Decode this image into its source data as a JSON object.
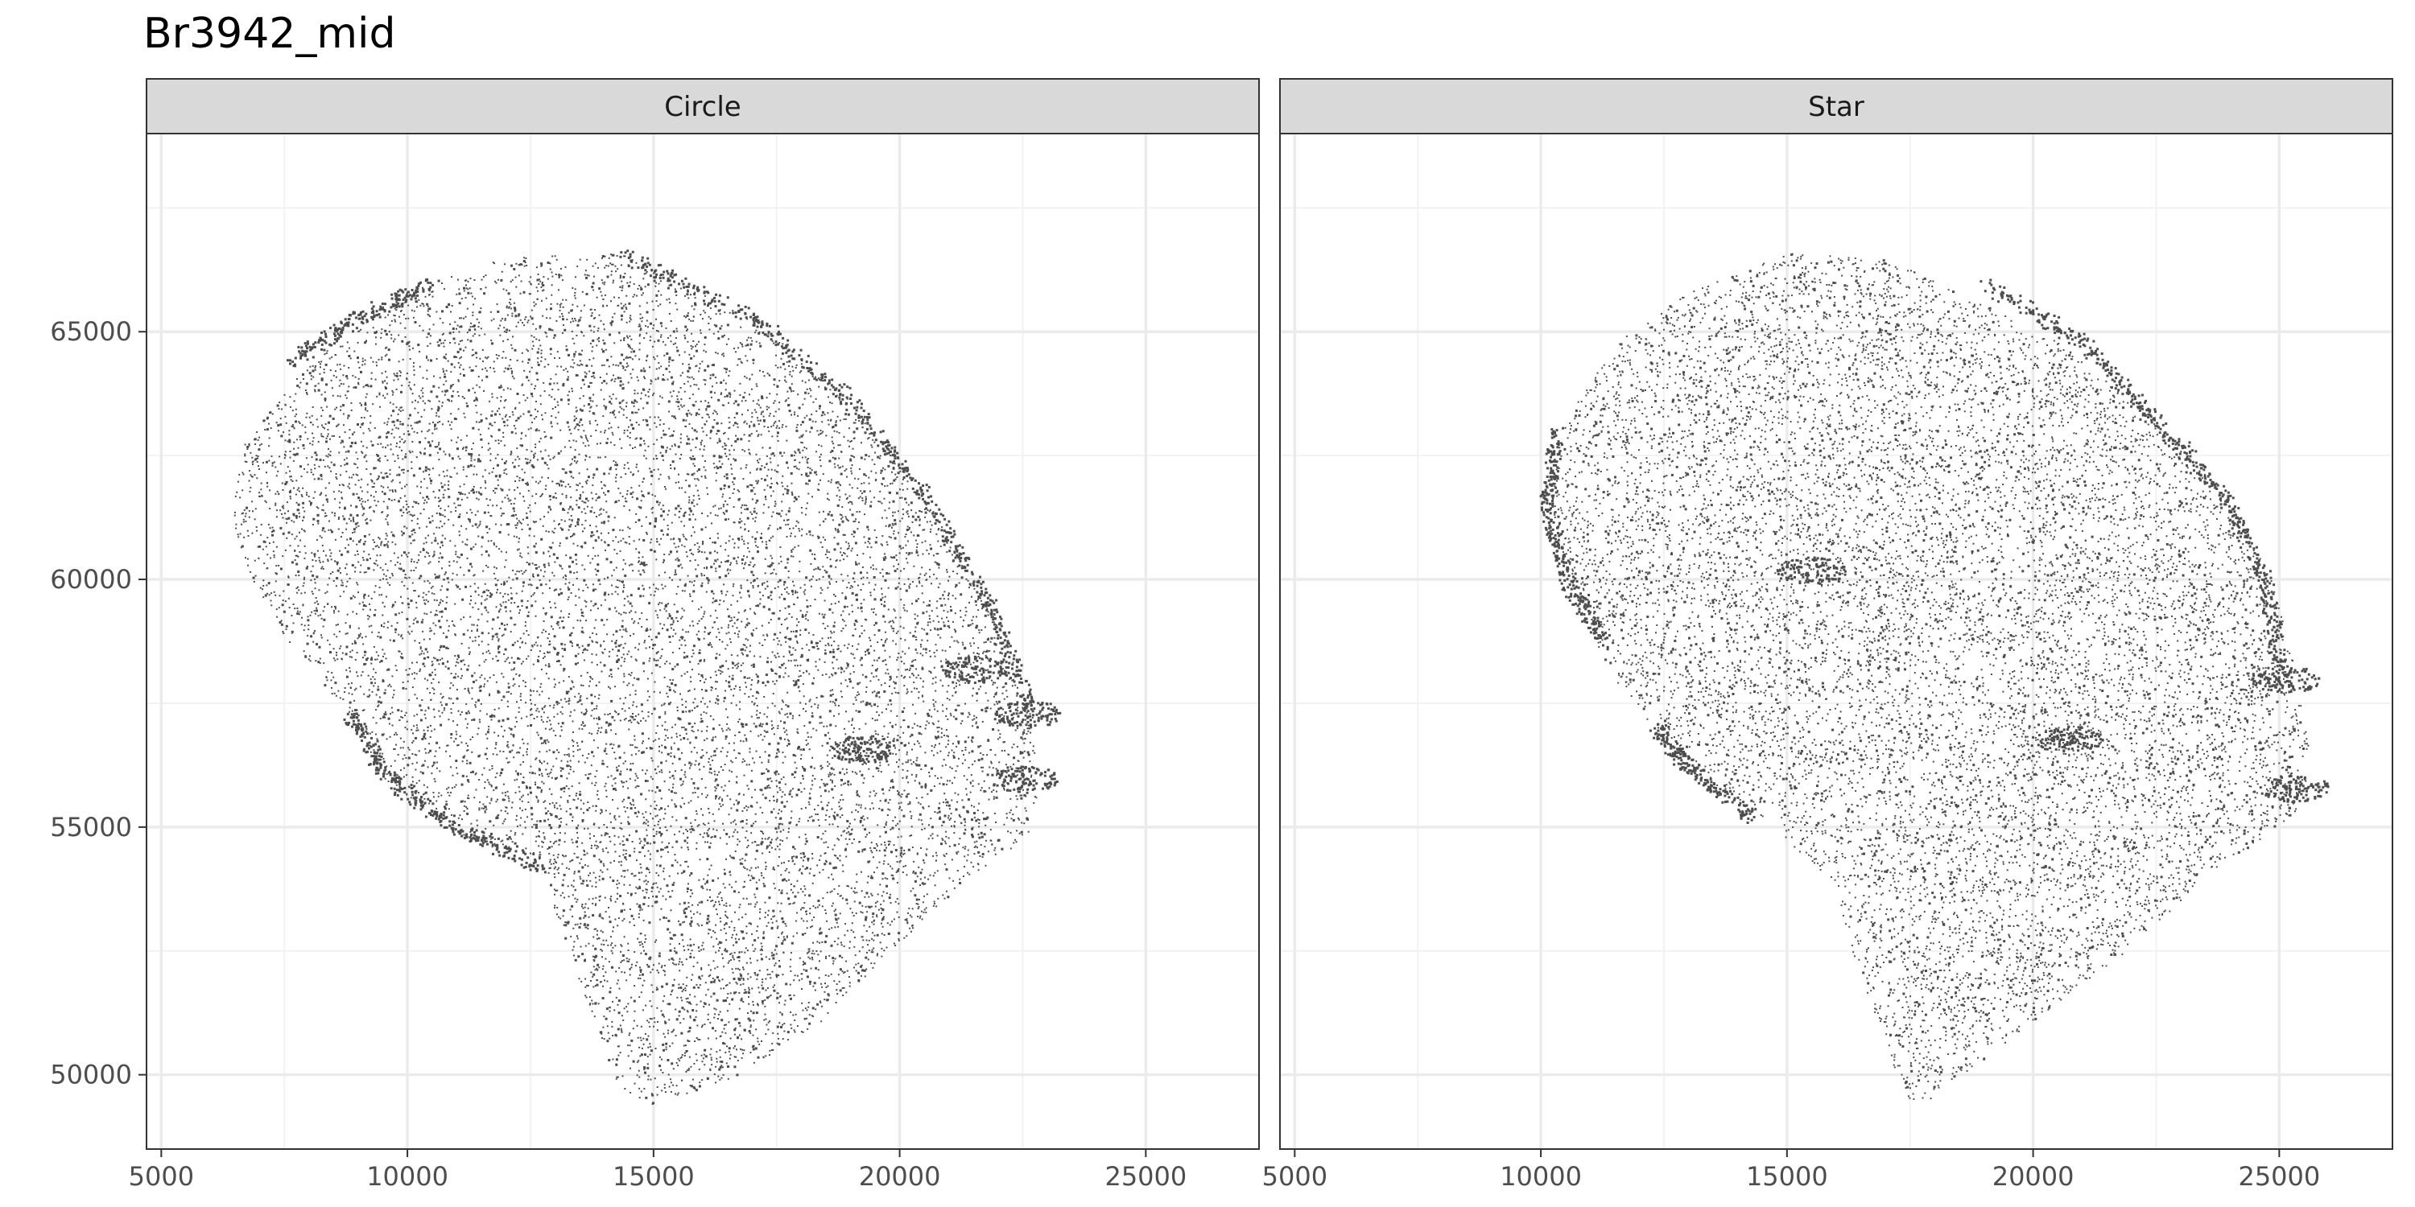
{
  "chart_data": {
    "type": "scatter",
    "title": "Br3942_mid",
    "xlabel": "",
    "ylabel": "",
    "xlim": [
      4700,
      27300
    ],
    "ylim": [
      48500,
      69000
    ],
    "x_ticks": [
      5000,
      10000,
      15000,
      20000,
      25000
    ],
    "y_ticks": [
      50000,
      55000,
      60000,
      65000
    ],
    "x_tick_labels": [
      "5000",
      "10000",
      "15000",
      "20000",
      "25000"
    ],
    "y_tick_labels": [
      "50000",
      "55000",
      "60000",
      "65000"
    ],
    "grid": true,
    "legend": "none",
    "point_color": "#4d4d4d",
    "panels": [
      {
        "name": "Circle",
        "outline": [
          [
            6700,
            62800
          ],
          [
            8000,
            64400
          ],
          [
            10000,
            65900
          ],
          [
            12000,
            66500
          ],
          [
            14300,
            66600
          ],
          [
            17000,
            65300
          ],
          [
            19000,
            63600
          ],
          [
            20500,
            61700
          ],
          [
            21800,
            59500
          ],
          [
            22700,
            57400
          ],
          [
            22800,
            55100
          ],
          [
            22300,
            54600
          ],
          [
            21300,
            53900
          ],
          [
            20000,
            52700
          ],
          [
            18400,
            51100
          ],
          [
            16700,
            50000
          ],
          [
            15000,
            49400
          ],
          [
            14300,
            49700
          ],
          [
            13500,
            51800
          ],
          [
            12700,
            54200
          ],
          [
            10800,
            55000
          ],
          [
            9500,
            56000
          ],
          [
            8800,
            57300
          ],
          [
            7600,
            58700
          ],
          [
            6700,
            60200
          ],
          [
            6400,
            61400
          ]
        ],
        "dense_edges": [
          [
            [
              14300,
              66600
            ],
            [
              17000,
              65300
            ],
            [
              19000,
              63600
            ],
            [
              20500,
              61700
            ],
            [
              21800,
              59500
            ],
            [
              22600,
              57500
            ]
          ],
          [
            [
              7600,
              64400
            ],
            [
              9000,
              65300
            ],
            [
              10500,
              66000
            ]
          ],
          [
            [
              12700,
              54200
            ],
            [
              11000,
              55000
            ],
            [
              9600,
              56000
            ],
            [
              8800,
              57300
            ]
          ]
        ],
        "blobs": [
          [
            19200,
            56600
          ],
          [
            22500,
            56000
          ],
          [
            22600,
            57300
          ],
          [
            21500,
            58200
          ]
        ]
      },
      {
        "name": "Star",
        "outline": [
          [
            10300,
            63000
          ],
          [
            11500,
            64800
          ],
          [
            13000,
            65800
          ],
          [
            15000,
            66600
          ],
          [
            17000,
            66500
          ],
          [
            18500,
            65800
          ],
          [
            20500,
            64800
          ],
          [
            22400,
            63300
          ],
          [
            23800,
            61800
          ],
          [
            24800,
            60100
          ],
          [
            25300,
            58300
          ],
          [
            25600,
            56600
          ],
          [
            25500,
            55400
          ],
          [
            24800,
            54900
          ],
          [
            23500,
            54000
          ],
          [
            22000,
            52600
          ],
          [
            20400,
            51400
          ],
          [
            18800,
            50200
          ],
          [
            17600,
            49300
          ],
          [
            17300,
            49800
          ],
          [
            16500,
            52000
          ],
          [
            15800,
            54000
          ],
          [
            14500,
            55200
          ],
          [
            13300,
            56000
          ],
          [
            12300,
            57000
          ],
          [
            11400,
            58100
          ],
          [
            10600,
            59800
          ],
          [
            10100,
            61500
          ]
        ],
        "dense_edges": [
          [
            [
              19000,
              66000
            ],
            [
              21000,
              64800
            ],
            [
              22400,
              63300
            ],
            [
              23800,
              61800
            ],
            [
              24700,
              60000
            ],
            [
              25000,
              58200
            ]
          ],
          [
            [
              10300,
              63000
            ],
            [
              10100,
              61500
            ],
            [
              10500,
              60000
            ],
            [
              11300,
              58700
            ]
          ],
          [
            [
              14300,
              55200
            ],
            [
              13000,
              56200
            ],
            [
              12300,
              57000
            ]
          ]
        ],
        "blobs": [
          [
            15500,
            60200
          ],
          [
            20700,
            56800
          ],
          [
            25300,
            55800
          ],
          [
            25100,
            58000
          ]
        ]
      }
    ]
  }
}
